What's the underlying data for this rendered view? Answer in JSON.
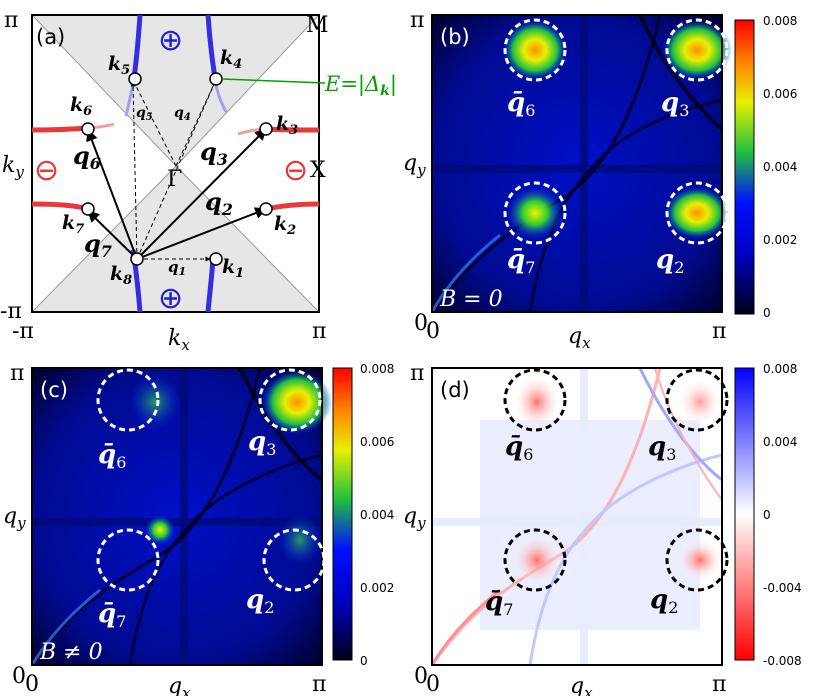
{
  "panels": {
    "a": {
      "tag": "(a)",
      "corner_M": "M",
      "corner_X": "X",
      "gamma": "Γ",
      "top_pi": "π",
      "bottom_neg_pi": "-π",
      "x_neg_pi": "-π",
      "x_pi": "π",
      "xlabel": "k",
      "xlabel_sub": "x",
      "ylabel": "k",
      "ylabel_sub": "y",
      "plus": "⊕",
      "minus": "⊖",
      "k_labels": [
        "k",
        "k",
        "k",
        "k",
        "k",
        "k",
        "k",
        "k"
      ],
      "k_subs": [
        "1",
        "2",
        "3",
        "4",
        "5",
        "6",
        "7",
        "8"
      ],
      "q_labels": [
        "q",
        "q",
        "q",
        "q",
        "q",
        "q",
        "q"
      ],
      "q_subs": [
        "1",
        "2",
        "3",
        "4",
        "5",
        "6",
        "7"
      ],
      "energy_label": "E=|Δ",
      "energy_sub": "k",
      "energy_close": "|"
    },
    "b": {
      "tag": "(b)",
      "field": "B = 0"
    },
    "c": {
      "tag": "(c)",
      "field": "B ≠ 0"
    },
    "d": {
      "tag": "(d)"
    },
    "common": {
      "pi": "π",
      "zero": "0",
      "qx": "q",
      "qx_sub": "x",
      "qy": "q",
      "qy_sub": "y",
      "q_bar": "q̄",
      "spot_subs": [
        "6",
        "3",
        "7",
        "2"
      ]
    }
  },
  "colorbars": {
    "b": {
      "ticks": [
        "0.008",
        "0.006",
        "0.004",
        "0.002",
        "0"
      ]
    },
    "c": {
      "ticks": [
        "0.008",
        "0.006",
        "0.004",
        "0.002",
        "0"
      ]
    },
    "d": {
      "ticks": [
        "0.008",
        "0.004",
        "0",
        "-0.004",
        "-0.008"
      ]
    }
  },
  "colors": {
    "heat_dark": "#000018",
    "heat_blue": "#0000e0",
    "heat_green": "#30d030",
    "heat_yellow": "#f0f000",
    "heat_red": "#e00000",
    "div_red": "#ff0000",
    "div_blue": "#0000ff",
    "fermi_red": "#e83838",
    "fermi_blue": "#3030e0",
    "energy_green": "#00a000"
  }
}
